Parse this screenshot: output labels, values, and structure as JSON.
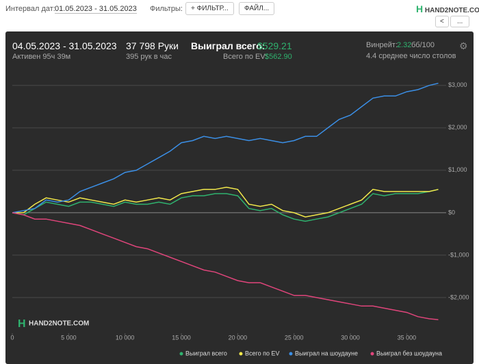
{
  "header": {
    "interval_label": "Интервал дат:",
    "interval_value": "01.05.2023 - 31.05.2023",
    "filters_label": "Фильтры:",
    "filter_button": "ФИЛЬТР...",
    "file_button": "ФАЙЛ...",
    "logo": "HAND2NOTE.COM",
    "more_button": "..."
  },
  "stats": {
    "period": "04.05.2023 - 31.05.2023",
    "active": "Активен 95ч 39м",
    "hands": "37 798 Руки",
    "hands_per_hour": "395 рук в час",
    "won_label": "Выиграл всего:",
    "won_value": "$529.21",
    "ev_label": "Всего по EV:",
    "ev_value": "$562.90",
    "winrate_label": "Винрейт:",
    "winrate_value": "2.32",
    "winrate_unit": "бб/100",
    "tables": "4.4 среднее число столов"
  },
  "chart_data": {
    "type": "line",
    "watermark": "HAND2NOTE.COM",
    "x": [
      0,
      1000,
      2000,
      3000,
      4000,
      5000,
      6000,
      7000,
      8000,
      9000,
      10000,
      11000,
      12000,
      13000,
      14000,
      15000,
      16000,
      17000,
      18000,
      19000,
      20000,
      21000,
      22000,
      23000,
      24000,
      25000,
      26000,
      27000,
      28000,
      29000,
      30000,
      31000,
      32000,
      33000,
      34000,
      35000,
      36000,
      37000,
      37800
    ],
    "xlim": [
      0,
      38500
    ],
    "xticks": [
      0,
      {
        "value": 5000,
        "label": "5 000"
      },
      {
        "value": 10000,
        "label": "10 000"
      },
      {
        "value": 15000,
        "label": "15 000"
      },
      {
        "value": 20000,
        "label": "20 000"
      },
      {
        "value": 25000,
        "label": "25 000"
      },
      {
        "value": 30000,
        "label": "30 000"
      },
      {
        "value": 35000,
        "label": "35 000"
      }
    ],
    "ylim": [
      -2840,
      3320
    ],
    "yticks": [
      {
        "value": -2000,
        "label": "-$2,000"
      },
      {
        "value": -1000,
        "label": "-$1,000"
      },
      {
        "value": 0,
        "label": "$0"
      },
      {
        "value": 1000,
        "label": "$1,000"
      },
      {
        "value": 2000,
        "label": "$2,000"
      },
      {
        "value": 3000,
        "label": "$3,000"
      }
    ],
    "grid": true,
    "series": [
      {
        "name": "Выиграл всего",
        "color": "#2fb36f",
        "values": [
          0,
          -50,
          100,
          250,
          200,
          150,
          250,
          250,
          200,
          150,
          250,
          200,
          200,
          250,
          200,
          350,
          400,
          400,
          450,
          450,
          400,
          100,
          50,
          100,
          -50,
          -150,
          -200,
          -150,
          -100,
          0,
          100,
          200,
          450,
          400,
          450,
          450,
          450,
          500,
          550
        ]
      },
      {
        "name": "Всего по EV",
        "color": "#f2e84b",
        "values": [
          0,
          0,
          200,
          350,
          300,
          250,
          350,
          300,
          250,
          200,
          300,
          250,
          300,
          350,
          300,
          450,
          500,
          550,
          550,
          600,
          550,
          200,
          150,
          200,
          50,
          0,
          -100,
          -50,
          0,
          100,
          200,
          300,
          550,
          500,
          500,
          500,
          500,
          500,
          550
        ]
      },
      {
        "name": "Выиграл на шоудауне",
        "color": "#3b8fe6",
        "values": [
          0,
          50,
          100,
          300,
          250,
          300,
          500,
          600,
          700,
          800,
          950,
          1000,
          1150,
          1300,
          1450,
          1650,
          1700,
          1800,
          1750,
          1800,
          1750,
          1700,
          1750,
          1700,
          1650,
          1700,
          1800,
          1800,
          2000,
          2200,
          2300,
          2500,
          2700,
          2750,
          2750,
          2850,
          2900,
          3000,
          3050
        ]
      },
      {
        "name": "Выиграл без шоудауна",
        "color": "#e0457b",
        "values": [
          0,
          -50,
          -150,
          -150,
          -200,
          -250,
          -300,
          -400,
          -500,
          -600,
          -700,
          -800,
          -850,
          -950,
          -1050,
          -1150,
          -1250,
          -1350,
          -1400,
          -1500,
          -1600,
          -1650,
          -1650,
          -1750,
          -1850,
          -1950,
          -1950,
          -2000,
          -2050,
          -2100,
          -2150,
          -2200,
          -2200,
          -2250,
          -2300,
          -2350,
          -2450,
          -2500,
          -2520
        ]
      }
    ]
  }
}
